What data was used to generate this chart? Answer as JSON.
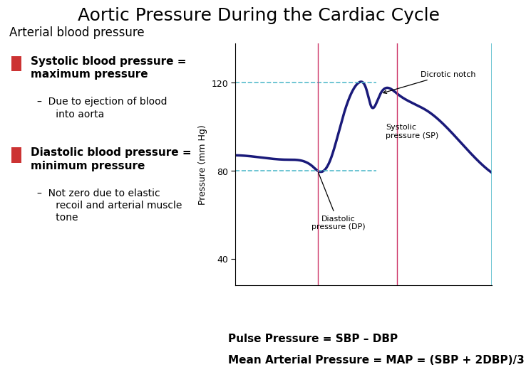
{
  "title": "Aortic Pressure During the Cardiac Cycle",
  "title_fontsize": 18,
  "background_color": "#ffffff",
  "text_color": "#000000",
  "bullet_color": "#cc3333",
  "left_text": {
    "header": "Arterial blood pressure",
    "header_fontsize": 12,
    "bullet1_bold": "Systolic blood pressure =\nmaximum pressure",
    "bullet1_sub": "Due to ejection of blood\ninto aorta",
    "bullet2_bold": "Diastolic blood pressure =\nminimum pressure",
    "bullet2_sub": "Not zero due to elastic\nrecoil and arterial muscle\ntone",
    "bullet_fontsize": 11,
    "sub_fontsize": 10
  },
  "bottom_text": {
    "line1": "Pulse Pressure = SBP – DBP",
    "line2": "Mean Arterial Pressure = MAP = (SBP + 2DBP)/3",
    "fontsize": 11
  },
  "graph": {
    "ylabel": "Pressure (mm Hg)",
    "yticks": [
      40,
      80,
      120
    ],
    "ylim": [
      28,
      138
    ],
    "xlim": [
      0,
      10
    ],
    "line_color": "#1a1a7a",
    "line_width": 2.5,
    "diastolic_level": 80,
    "systolic_level": 120,
    "dashed_color": "#55bbcc",
    "vertical_line_color": "#cc3366",
    "vert_line1_x": 3.2,
    "vert_line2_x": 6.3,
    "right_border_color": "#55bbcc",
    "annot_fontsize": 8
  }
}
